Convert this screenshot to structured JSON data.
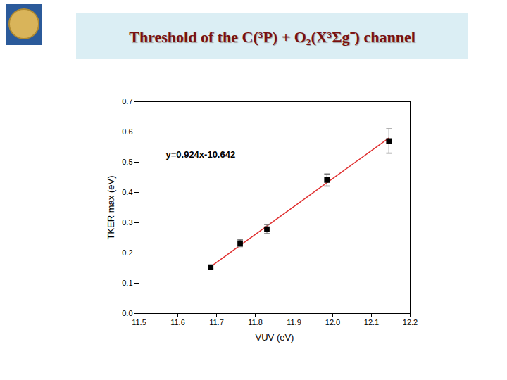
{
  "chart_data": {
    "type": "scatter",
    "title": "Threshold of the C(³P) + O₂(X³Σg⁻) channel",
    "x_label": "VUV (eV)",
    "y_label": "TKER max (eV)",
    "x": [
      11.685,
      11.761,
      11.83,
      11.985,
      12.145
    ],
    "values": [
      0.153,
      0.233,
      0.279,
      0.441,
      0.57
    ],
    "errors": [
      0.005,
      0.012,
      0.015,
      0.02,
      0.04
    ],
    "color": "#000000",
    "marker": "square",
    "fit": {
      "x": [
        11.685,
        12.145
      ],
      "values": [
        0.155,
        0.58
      ],
      "color": "#e03030",
      "annotation": "y=0.924x-10.642"
    },
    "xlim": [
      11.5,
      12.2
    ],
    "xticks": [
      11.5,
      11.6,
      11.7,
      11.8,
      11.9,
      {
        "value": 12,
        "label": "12.0"
      },
      12.1,
      12.2
    ],
    "ylim": [
      0,
      0.7
    ],
    "yticks": [
      {
        "value": 0,
        "label": "0.0"
      },
      0.1,
      0.2,
      0.3,
      0.4,
      0.5,
      0.6,
      0.7
    ]
  }
}
